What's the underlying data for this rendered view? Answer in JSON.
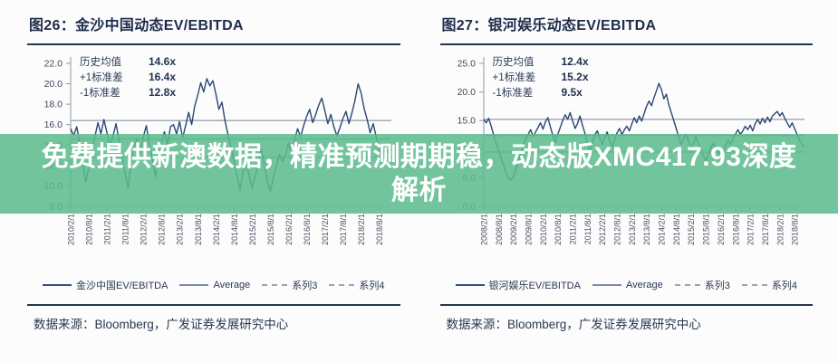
{
  "overlay": {
    "line1": "免费提供新澳数据，精准预测期期稳，动态版XMC417.93深度",
    "line2": "解析",
    "bg_color": "#5cbb8d",
    "text_color": "#ffffff"
  },
  "source_label": "数据来源：Bloomberg，广发证券发展研究中心",
  "chart_data": [
    {
      "type": "line",
      "title": "图26：金沙中国动态EV/EBITDA",
      "ylim": [
        8,
        22
      ],
      "yticks": [
        22,
        20,
        18,
        16,
        14,
        12,
        10,
        8
      ],
      "grid": false,
      "legend_position": "bottom",
      "x_label_step": 6,
      "x_tick_labels": [
        "2010/2/1",
        "2010/8/1",
        "2011/2/1",
        "2011/8/1",
        "2012/2/1",
        "2012/8/1",
        "2013/2/1",
        "2013/8/1",
        "2014/2/1",
        "2014/8/1",
        "2015/2/1",
        "2015/8/1",
        "2016/2/1",
        "2016/8/1",
        "2017/2/1",
        "2017/8/1",
        "2018/2/1",
        "2018/8/1"
      ],
      "stats": [
        {
          "label": "历史均值",
          "value": "14.6x"
        },
        {
          "label": "+1标准差",
          "value": "16.4x"
        },
        {
          "label": "-1标准差",
          "value": "12.8x"
        }
      ],
      "mean": 14.6,
      "plus1sd": 16.4,
      "minus1sd": 12.8,
      "series": [
        {
          "name": "金沙中国EV/EBITDA",
          "color": "#2b4770",
          "values": [
            15.6,
            14.9,
            15.8,
            14.2,
            12.1,
            10.4,
            11.8,
            13.5,
            14.8,
            16.2,
            15.1,
            16.5,
            15.2,
            13.8,
            14.9,
            16.1,
            14.4,
            12.9,
            11.2,
            9.8,
            12.4,
            13.9,
            14.6,
            13.2,
            14.8,
            15.9,
            14.1,
            12.6,
            10.9,
            12.8,
            14.2,
            15.3,
            14.0,
            15.8,
            16.0,
            15.1,
            16.3,
            14.7,
            15.9,
            17.2,
            16.0,
            17.8,
            18.9,
            20.1,
            19.2,
            20.5,
            19.8,
            20.3,
            19.0,
            17.5,
            18.2,
            16.4,
            15.0,
            13.8,
            12.5,
            11.0,
            9.6,
            11.4,
            12.2,
            11.0,
            9.8,
            10.9,
            12.3,
            13.6,
            12.1,
            10.5,
            9.5,
            10.8,
            12.0,
            13.1,
            12.4,
            13.0,
            14.2,
            13.1,
            14.5,
            15.6,
            14.8,
            15.9,
            16.8,
            17.5,
            16.2,
            17.0,
            17.9,
            18.6,
            17.4,
            16.1,
            17.0,
            15.8,
            14.9,
            15.7,
            16.6,
            17.3,
            16.1,
            17.2,
            18.4,
            20.0,
            19.1,
            17.6,
            16.5,
            15.2,
            16.1,
            14.8,
            13.5,
            12.8,
            13.9,
            13.2,
            13.6
          ]
        },
        {
          "name": "Average",
          "color": "#8c98a6",
          "value": 14.6
        },
        {
          "name": "系列3",
          "color": "#9aa5b1",
          "value": 16.4,
          "dashed": true
        },
        {
          "name": "系列4",
          "color": "#9aa5b1",
          "value": 12.8,
          "dashed": true
        }
      ]
    },
    {
      "type": "line",
      "title": "图27：银河娱乐动态EV/EBITDA",
      "ylim": [
        0,
        25
      ],
      "yticks": [
        25,
        20,
        15,
        10,
        5,
        0
      ],
      "grid": false,
      "legend_position": "bottom",
      "x_label_step": 6,
      "x_tick_labels": [
        "2008/2/1",
        "2008/8/1",
        "2009/2/1",
        "2009/8/1",
        "2010/2/1",
        "2010/8/1",
        "2011/2/1",
        "2011/8/1",
        "2012/2/1",
        "2012/8/1",
        "2013/2/1",
        "2013/8/1",
        "2014/2/1",
        "2014/8/1",
        "2015/2/1",
        "2015/8/1",
        "2016/2/1",
        "2016/8/1",
        "2017/2/1",
        "2017/8/1",
        "2018/2/1",
        "2018/8/1"
      ],
      "stats": [
        {
          "label": "历史均值",
          "value": "12.4x"
        },
        {
          "label": "+1标准差",
          "value": "15.2x"
        },
        {
          "label": "-1标准差",
          "value": "9.5x"
        }
      ],
      "mean": 12.4,
      "plus1sd": 15.2,
      "minus1sd": 9.5,
      "series": [
        {
          "name": "银河娱乐EV/EBITDA",
          "color": "#2b4770",
          "values": [
            15.2,
            14.6,
            15.4,
            14.0,
            12.5,
            11.0,
            9.8,
            8.5,
            7.2,
            5.8,
            5.0,
            4.6,
            5.2,
            6.5,
            7.8,
            9.2,
            10.5,
            11.8,
            12.6,
            13.4,
            12.2,
            13.0,
            13.8,
            14.6,
            13.5,
            14.8,
            15.5,
            13.9,
            12.4,
            11.2,
            12.6,
            13.8,
            15.0,
            16.0,
            15.2,
            16.4,
            15.0,
            13.6,
            14.5,
            15.8,
            14.2,
            12.8,
            10.9,
            9.6,
            11.2,
            12.5,
            13.2,
            12.0,
            10.8,
            11.9,
            13.0,
            11.6,
            10.4,
            11.5,
            12.8,
            13.6,
            12.5,
            13.4,
            14.0,
            13.2,
            14.4,
            15.5,
            14.6,
            15.8,
            14.9,
            16.2,
            17.5,
            18.4,
            17.6,
            19.0,
            20.2,
            21.5,
            20.4,
            18.8,
            19.6,
            17.8,
            16.4,
            15.0,
            13.6,
            12.2,
            10.8,
            11.8,
            12.6,
            11.4,
            10.2,
            11.0,
            12.2,
            11.0,
            9.8,
            8.8,
            8.0,
            9.0,
            10.2,
            11.0,
            10.4,
            9.6,
            8.6,
            9.4,
            10.6,
            11.6,
            10.8,
            11.8,
            12.6,
            13.4,
            12.6,
            13.2,
            14.0,
            13.4,
            14.2,
            13.2,
            14.4,
            15.2,
            14.4,
            15.4,
            14.6,
            15.6,
            14.8,
            15.8,
            16.2,
            16.6,
            15.8,
            16.4,
            15.4,
            14.6,
            13.8,
            14.6,
            13.6,
            12.6,
            11.6,
            10.8,
            10.4
          ]
        },
        {
          "name": "Average",
          "color": "#8c98a6",
          "value": 12.4
        },
        {
          "name": "系列3",
          "color": "#9aa5b1",
          "value": 15.2,
          "dashed": true
        },
        {
          "name": "系列4",
          "color": "#9aa5b1",
          "value": 9.5,
          "dashed": true
        }
      ]
    }
  ]
}
